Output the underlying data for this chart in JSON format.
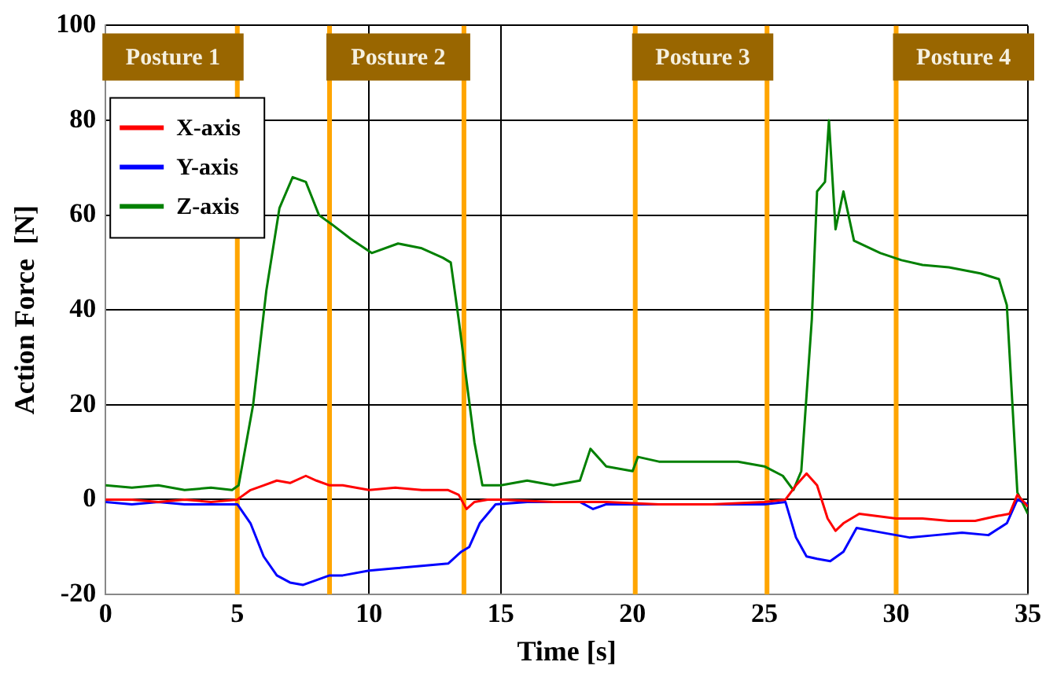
{
  "chart_data": {
    "type": "line",
    "xlabel": "Time [s]",
    "ylabel": "Action Force  [N]",
    "xlim": [
      0,
      35
    ],
    "ylim": [
      -20,
      100
    ],
    "xticks": [
      0,
      5,
      10,
      15,
      20,
      25,
      30,
      35
    ],
    "yticks": [
      -20,
      0,
      20,
      40,
      60,
      80,
      100
    ],
    "grid": true,
    "legend": "top left",
    "marker": "none",
    "line_style": "solid",
    "series": [
      {
        "name": "X-axis",
        "color": "#ff0000",
        "x": [
          0,
          1,
          2,
          3,
          4,
          5,
          5.5,
          6,
          6.5,
          7,
          7.6,
          8,
          8.5,
          9,
          10,
          11,
          12,
          13,
          13.4,
          13.7,
          14,
          14.5,
          15,
          17,
          19,
          21,
          23,
          25,
          25.8,
          26.2,
          26.6,
          27,
          27.4,
          27.7,
          28,
          28.6,
          29.3,
          30,
          31,
          32,
          33,
          33.8,
          34.3,
          34.6,
          35
        ],
        "values": [
          0,
          0,
          -0.5,
          0,
          -0.5,
          0,
          2,
          3,
          4,
          3.5,
          5,
          4,
          3,
          3,
          2,
          2.5,
          2,
          2,
          1,
          -2,
          -0.5,
          0,
          0,
          -0.5,
          -0.5,
          -1,
          -1,
          -0.5,
          0,
          3,
          5.5,
          3,
          -4,
          -6.6,
          -5,
          -3,
          -3.5,
          -4,
          -4,
          -4.5,
          -4.5,
          -3.5,
          -3,
          1,
          -1.5
        ]
      },
      {
        "name": "Y-axis",
        "color": "#0000ff",
        "x": [
          0,
          1,
          2,
          3,
          4,
          5,
          5.5,
          6,
          6.5,
          7,
          7.5,
          8,
          8.5,
          9,
          10,
          11,
          12,
          13,
          13.5,
          13.8,
          14.2,
          14.8,
          16,
          18,
          18.5,
          19,
          21,
          23,
          25,
          25.8,
          26.2,
          26.6,
          27,
          27.5,
          28,
          28.5,
          29.5,
          30.5,
          31.5,
          32.5,
          33.5,
          34.2,
          34.6,
          35
        ],
        "values": [
          -0.5,
          -1,
          -0.5,
          -1,
          -1,
          -1,
          -5,
          -12,
          -16,
          -17.5,
          -18,
          -17,
          -16,
          -16,
          -15,
          -14.5,
          -14,
          -13.5,
          -11,
          -10,
          -5,
          -1,
          -0.5,
          -0.5,
          -2,
          -1,
          -1,
          -1,
          -1,
          -0.5,
          -8,
          -12,
          -12.5,
          -13,
          -11,
          -6,
          -7,
          -8,
          -7.5,
          -7,
          -7.5,
          -5,
          0,
          -1
        ]
      },
      {
        "name": "Z-axis",
        "color": "#008000",
        "x": [
          0,
          1,
          2,
          3,
          4,
          4.8,
          5.05,
          5.6,
          6.1,
          6.6,
          7.1,
          7.6,
          8.1,
          8.6,
          9.3,
          10.1,
          11.1,
          12,
          12.8,
          13.1,
          13.4,
          14,
          14.3,
          15,
          16,
          17,
          18,
          18.4,
          19,
          20,
          20.2,
          21,
          22,
          23,
          24,
          25,
          25.7,
          26.1,
          26.4,
          26.8,
          27,
          27.3,
          27.45,
          27.7,
          28,
          28.4,
          29.4,
          30.2,
          31,
          32,
          33.2,
          33.9,
          34.2,
          34.6,
          35
        ],
        "values": [
          3,
          2.5,
          3,
          2,
          2.5,
          2,
          3,
          20,
          44,
          61.5,
          68,
          67,
          60,
          58,
          55,
          52,
          54,
          53,
          51,
          50,
          38,
          12,
          3,
          3,
          4,
          3,
          4,
          10.7,
          7,
          6,
          9,
          8,
          8,
          8,
          8,
          7,
          5,
          2,
          6,
          38,
          65,
          67,
          80,
          57,
          65,
          54.6,
          52,
          50.5,
          49.5,
          49,
          47.7,
          46.5,
          41,
          1.5,
          -3
        ]
      }
    ],
    "ref_lines": [
      {
        "axis": "x",
        "value": 5,
        "color": "#ffa500"
      },
      {
        "axis": "x",
        "value": 8.5,
        "color": "#ffa500"
      },
      {
        "axis": "x",
        "value": 13.6,
        "color": "#ffa500"
      },
      {
        "axis": "x",
        "value": 20.1,
        "color": "#ffa500"
      },
      {
        "axis": "x",
        "value": 25.1,
        "color": "#ffa500"
      },
      {
        "axis": "x",
        "value": 30,
        "color": "#ffa500"
      }
    ],
    "annotations": [
      "Posture 1",
      "Posture 2",
      "Posture 3",
      "Posture 4"
    ]
  }
}
